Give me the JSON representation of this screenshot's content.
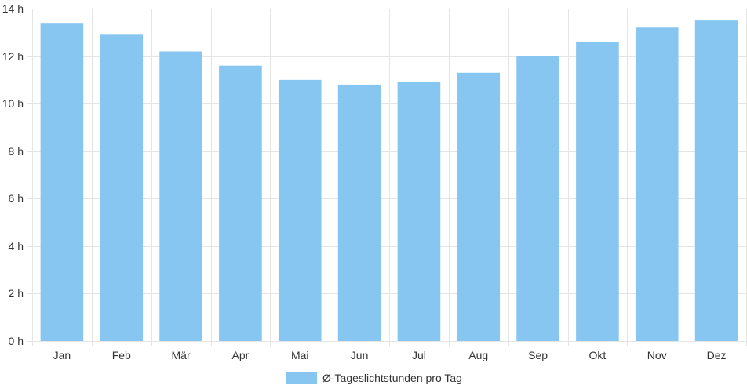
{
  "chart_data": {
    "type": "bar",
    "categories": [
      "Jan",
      "Feb",
      "Mär",
      "Apr",
      "Mai",
      "Jun",
      "Jul",
      "Aug",
      "Sep",
      "Okt",
      "Nov",
      "Dez"
    ],
    "series": [
      {
        "name": "Ø-Tageslichtstunden pro Tag",
        "values": [
          13.4,
          12.9,
          12.2,
          11.6,
          11.0,
          10.8,
          10.9,
          11.3,
          12.0,
          12.6,
          13.2,
          13.5
        ]
      }
    ],
    "y_ticks": [
      0,
      2,
      4,
      6,
      8,
      10,
      12,
      14
    ],
    "y_unit_suffix": " h",
    "ylim": [
      0,
      14
    ],
    "grid": true,
    "legend_position": "bottom",
    "colors": {
      "bar": "#88c6f2",
      "grid": "#e5e5e5",
      "text": "#333333"
    }
  }
}
